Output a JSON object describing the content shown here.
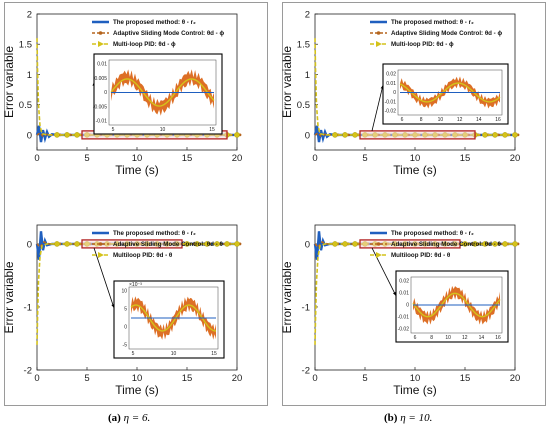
{
  "captions": [
    {
      "prefix": "(a)",
      "text": "η = 6."
    },
    {
      "prefix": "(b)",
      "text": "η = 10."
    }
  ],
  "colors": {
    "proposed": "#1f5fbf",
    "asmc": "#b5651d",
    "pid": "#d4c21a",
    "highlight": "#b22222",
    "inset_fill": "#d95f0e"
  },
  "chart_data": [
    {
      "id": "a-top",
      "type": "line",
      "xlabel": "Time (s)",
      "ylabel": "Error variable",
      "xlim": [
        0,
        20
      ],
      "ylim": [
        -0.25,
        2
      ],
      "xticks": [
        "0",
        "5",
        "10",
        "15",
        "20"
      ],
      "yticks": [
        "0",
        "0.5",
        "1",
        "1.5",
        "2"
      ],
      "ytick_values": [
        0,
        0.5,
        1,
        1.5,
        2
      ],
      "legend": [
        "The proposed method: θ - r₂",
        "Adaptive Sliding Mode Control: θd - ϕ",
        "Multi-loop PID: θd - ϕ"
      ],
      "series": [
        {
          "name": "The proposed method: θ - r₂",
          "x": [
            0,
            0.2,
            0.4,
            0.6,
            0.8,
            1.0,
            1.2,
            1.5,
            2,
            20
          ],
          "y": [
            0,
            0.15,
            -0.12,
            0.08,
            -0.06,
            0.05,
            -0.03,
            0.01,
            0,
            0
          ]
        },
        {
          "name": "Adaptive Sliding Mode Control: θd - ϕ",
          "x": [
            0,
            0.3,
            0.6,
            1.0,
            1.5,
            20
          ],
          "y": [
            0,
            0.03,
            -0.02,
            0.01,
            0,
            0
          ]
        },
        {
          "name": "Multi-loop PID: θd - ϕ",
          "x": [
            0,
            0.05,
            0.15,
            0.3,
            0.5,
            1,
            20
          ],
          "y": [
            1.6,
            1.1,
            0.5,
            0.15,
            0.02,
            0,
            0
          ]
        }
      ],
      "highlight_x": [
        4.5,
        19
      ],
      "inset": {
        "xticks": [
          "5",
          "10",
          "15"
        ],
        "yticks": [
          "0.01",
          "0.005",
          "0",
          "-0.005",
          "-0.01"
        ]
      }
    },
    {
      "id": "a-bottom",
      "type": "line",
      "xlabel": "Time (s)",
      "ylabel": "Error variable",
      "xlim": [
        0,
        20
      ],
      "ylim": [
        -2,
        0.3
      ],
      "xticks": [
        "0",
        "5",
        "10",
        "15",
        "20"
      ],
      "yticks": [
        "0",
        "-1",
        "-2"
      ],
      "ytick_values": [
        0,
        -1,
        -2
      ],
      "legend": [
        "The proposed method: θ - r₂",
        "Adaptive Sliding Mode Control: θd - θ",
        "Multiloop PID: θd - θ"
      ],
      "series": [
        {
          "name": "The proposed method: θ - r₂",
          "x": [
            0,
            0.2,
            0.4,
            0.6,
            0.8,
            1.0,
            1.5,
            20
          ],
          "y": [
            0,
            -0.25,
            0.2,
            -0.1,
            0.05,
            -0.02,
            0,
            0
          ]
        },
        {
          "name": "Adaptive Sliding Mode Control: θd - θ",
          "x": [
            0,
            0.3,
            0.7,
            1.2,
            20
          ],
          "y": [
            0,
            -0.05,
            0.03,
            0,
            0
          ]
        },
        {
          "name": "Multiloop PID: θd - θ",
          "x": [
            0,
            0.05,
            0.15,
            0.3,
            0.5,
            1,
            20
          ],
          "y": [
            -1.6,
            -1.2,
            -0.6,
            -0.2,
            -0.03,
            0,
            0
          ]
        }
      ],
      "highlight_x": [
        4.5,
        14.5
      ],
      "inset": {
        "exponent": "×10⁻³",
        "xticks": [
          "5",
          "10",
          "15"
        ],
        "yticks": [
          "10",
          "5",
          "0",
          "-5"
        ]
      }
    },
    {
      "id": "b-top",
      "type": "line",
      "xlabel": "Time (s)",
      "ylabel": "Error variable",
      "xlim": [
        0,
        20
      ],
      "ylim": [
        -0.25,
        2
      ],
      "xticks": [
        "0",
        "5",
        "10",
        "15",
        "20"
      ],
      "yticks": [
        "0",
        "0.5",
        "1",
        "1.5",
        "2"
      ],
      "ytick_values": [
        0,
        0.5,
        1,
        1.5,
        2
      ],
      "legend": [
        "The proposed method: θ - r₂",
        "Adaptive Sliding Mode Control: θd - ϕ",
        "Multi-loop PID: θd - ϕ"
      ],
      "series": [
        {
          "name": "The proposed method: θ - r₂",
          "x": [
            0,
            0.2,
            0.4,
            0.6,
            0.8,
            1.0,
            1.2,
            1.5,
            2,
            20
          ],
          "y": [
            0,
            0.15,
            -0.12,
            0.08,
            -0.06,
            0.05,
            -0.03,
            0.01,
            0,
            0
          ]
        },
        {
          "name": "Adaptive Sliding Mode Control: θd - ϕ",
          "x": [
            0,
            0.3,
            0.6,
            1.0,
            1.5,
            20
          ],
          "y": [
            0,
            0.03,
            -0.02,
            0.01,
            0,
            0
          ]
        },
        {
          "name": "Multi-loop PID: θd - ϕ",
          "x": [
            0,
            0.05,
            0.15,
            0.3,
            0.5,
            1,
            20
          ],
          "y": [
            1.6,
            1.1,
            0.5,
            0.15,
            0.02,
            0,
            0
          ]
        }
      ],
      "highlight_x": [
        4.5,
        16
      ],
      "inset": {
        "xticks": [
          "6",
          "8",
          "10",
          "12",
          "14",
          "16"
        ],
        "yticks": [
          "0.02",
          "0.01",
          "0",
          "-0.01",
          "-0.02"
        ]
      }
    },
    {
      "id": "b-bottom",
      "type": "line",
      "xlabel": "Time (s)",
      "ylabel": "Error variable",
      "xlim": [
        0,
        20
      ],
      "ylim": [
        -2,
        0.3
      ],
      "xticks": [
        "0",
        "5",
        "10",
        "15",
        "20"
      ],
      "yticks": [
        "0",
        "-1",
        "-2"
      ],
      "ytick_values": [
        0,
        -1,
        -2
      ],
      "legend": [
        "The proposed method: θ - r₂",
        "Adaptive Sliding Mode Control: θd - θ",
        "Multiloop PID: θd - θ"
      ],
      "series": [
        {
          "name": "The proposed method: θ - r₂",
          "x": [
            0,
            0.2,
            0.4,
            0.6,
            0.8,
            1.0,
            1.5,
            20
          ],
          "y": [
            0,
            -0.25,
            0.2,
            -0.1,
            0.05,
            -0.02,
            0,
            0
          ]
        },
        {
          "name": "Adaptive Sliding Mode Control: θd - θ",
          "x": [
            0,
            0.3,
            0.7,
            1.2,
            20
          ],
          "y": [
            0,
            -0.05,
            0.03,
            0,
            0
          ]
        },
        {
          "name": "Multiloop PID: θd - θ",
          "x": [
            0,
            0.05,
            0.15,
            0.3,
            0.5,
            1,
            20
          ],
          "y": [
            -1.6,
            -1.2,
            -0.6,
            -0.2,
            -0.03,
            0,
            0
          ]
        }
      ],
      "highlight_x": [
        4.5,
        14.5
      ],
      "inset": {
        "xticks": [
          "6",
          "8",
          "10",
          "12",
          "14",
          "16"
        ],
        "yticks": [
          "0.02",
          "0.01",
          "0",
          "-0.01",
          "-0.02"
        ]
      }
    }
  ]
}
